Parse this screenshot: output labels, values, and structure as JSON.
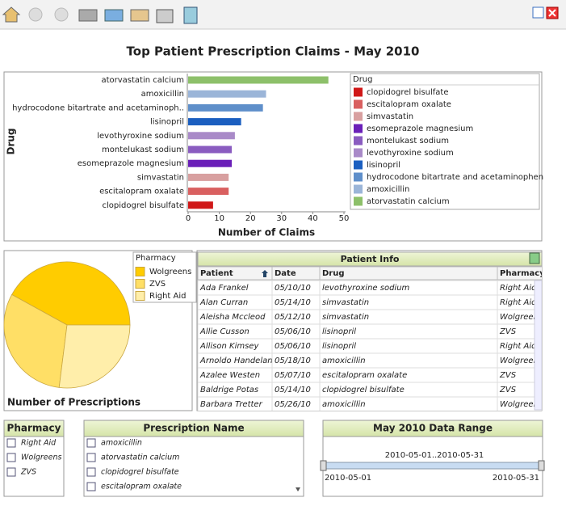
{
  "title": "Top Patient Prescription Claims - May 2010",
  "chart_data": [
    {
      "type": "bar",
      "orientation": "horizontal",
      "categories": [
        "atorvastatin calcium",
        "amoxicillin",
        "hydrocodone bitartrate and acetaminoph..",
        "lisinopril",
        "levothyroxine sodium",
        "montelukast sodium",
        "esomeprazole magnesium",
        "simvastatin",
        "escitalopram oxalate",
        "clopidogrel bisulfate"
      ],
      "legend_labels": [
        "atorvastatin calcium",
        "amoxicillin",
        "hydrocodone bitartrate and acetaminophen",
        "lisinopril",
        "levothyroxine sodium",
        "montelukast sodium",
        "esomeprazole magnesium",
        "simvastatin",
        "escitalopram oxalate",
        "clopidogrel bisulfate"
      ],
      "values": [
        45,
        25,
        24,
        17,
        15,
        14,
        14,
        13,
        13,
        8
      ],
      "colors": [
        "#8dc06a",
        "#9bb5d8",
        "#5f8fca",
        "#1b5fc0",
        "#a98ac8",
        "#8a5cc0",
        "#6a1fb8",
        "#d8a0a0",
        "#d96060",
        "#d01818"
      ],
      "xlim": [
        0,
        50
      ],
      "xticks": [
        0,
        10,
        20,
        30,
        40,
        50
      ],
      "x_label": "Number of Claims",
      "y_label": "Drug",
      "legend_title": "Drug",
      "legend": "right"
    },
    {
      "type": "pie",
      "categories": [
        "Wolgreens",
        "ZVS",
        "Right Aid"
      ],
      "values": [
        42,
        31,
        27
      ],
      "colors": [
        "#ffcc00",
        "#ffdf66",
        "#ffeeaa"
      ],
      "label": "Number of Prescriptions",
      "legend_title": "Pharmacy",
      "legend": "top-right"
    }
  ],
  "table": {
    "title": "Patient Info",
    "columns": [
      "Patient",
      "Date",
      "Drug",
      "Pharmacy"
    ],
    "rows": [
      [
        "Ada Frankel",
        "05/10/10",
        "levothyroxine sodium",
        "Right Aid"
      ],
      [
        "Alan Curran",
        "05/14/10",
        "simvastatin",
        "Right Aid"
      ],
      [
        "Aleisha Mccleod",
        "05/12/10",
        "simvastatin",
        "Wolgreens"
      ],
      [
        "Allie Cusson",
        "05/06/10",
        "lisinopril",
        "ZVS"
      ],
      [
        "Allison Kimsey",
        "05/06/10",
        "lisinopril",
        "Right Aid"
      ],
      [
        "Arnoldo Handelan",
        "05/18/10",
        "amoxicillin",
        "Wolgreens"
      ],
      [
        "Azalee Westen",
        "05/07/10",
        "escitalopram oxalate",
        "ZVS"
      ],
      [
        "Baldrige Potas",
        "05/14/10",
        "clopidogrel bisulfate",
        "ZVS"
      ],
      [
        "Barbara Tretter",
        "05/26/10",
        "amoxicillin",
        "Wolgreens"
      ]
    ]
  },
  "filters": [
    {
      "title": "Pharmacy",
      "options": [
        "Right Aid",
        "Wolgreens",
        "ZVS"
      ]
    },
    {
      "title": "Prescription Name",
      "options": [
        "amoxicillin",
        "atorvastatin calcium",
        "clopidogrel bisulfate",
        "escitalopram oxalate"
      ]
    }
  ],
  "date_range": {
    "title": "May 2010 Data Range",
    "range": "2010-05-01..2010-05-31",
    "start": "2010-05-01",
    "end": "2010-05-31"
  }
}
